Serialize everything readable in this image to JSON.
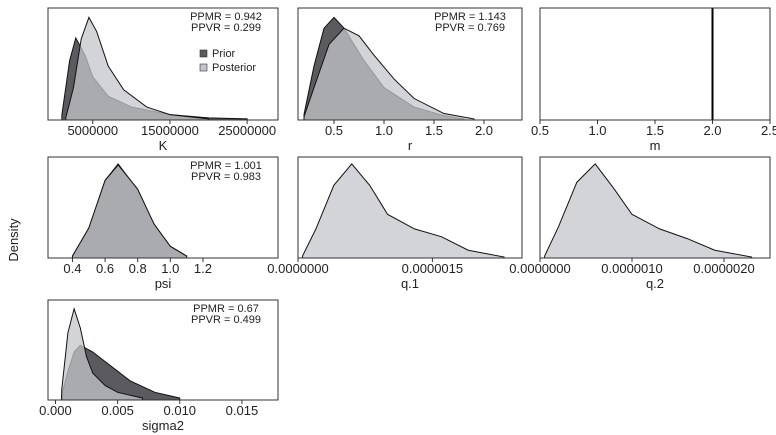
{
  "y_label": "Density",
  "chart_data": [
    {
      "type": "density",
      "x_label": "K",
      "xlim": [
        -800000,
        29000000
      ],
      "xticks": [
        5000000,
        15000000,
        25000000
      ],
      "ylim": [
        0,
        1
      ],
      "annotations": [
        "PPMR = 0.942",
        "PPVR = 0.299"
      ],
      "legend": "upper right",
      "series": [
        {
          "name": "Prior",
          "color": "#5b5b5f",
          "x": [
            1000000,
            2000000,
            2800000,
            4000000,
            5000000,
            7000000,
            10000000,
            15000000,
            20000000,
            25000000
          ],
          "values": [
            0.05,
            0.55,
            0.76,
            0.6,
            0.4,
            0.22,
            0.12,
            0.05,
            0.02,
            0.01
          ]
        },
        {
          "name": "Posterior",
          "color": "#c4c5ca",
          "x": [
            1500000,
            2500000,
            3500000,
            4500000,
            5500000,
            7000000,
            9000000,
            12000000,
            15000000,
            20000000
          ],
          "values": [
            0.02,
            0.3,
            0.75,
            0.95,
            0.82,
            0.5,
            0.28,
            0.12,
            0.05,
            0.01
          ]
        }
      ]
    },
    {
      "type": "density",
      "x_label": "r",
      "xlim": [
        0.14,
        2.38
      ],
      "xticks": [
        0.5,
        {
          "value": 1,
          "label": "1.0"
        },
        1.5,
        {
          "value": 2,
          "label": "2.0"
        }
      ],
      "ylim": [
        0,
        1
      ],
      "annotations": [
        "PPMR = 1.143",
        "PPVR = 0.769"
      ],
      "series": [
        {
          "name": "Prior",
          "color": "#5b5b5f",
          "x": [
            0.2,
            0.3,
            0.4,
            0.5,
            0.6,
            0.8,
            1.0,
            1.3,
            1.6,
            1.8
          ],
          "values": [
            0.05,
            0.5,
            0.85,
            0.95,
            0.85,
            0.55,
            0.3,
            0.12,
            0.04,
            0.01
          ]
        },
        {
          "name": "Posterior",
          "color": "#c4c5ca",
          "x": [
            0.2,
            0.3,
            0.45,
            0.6,
            0.75,
            0.9,
            1.1,
            1.3,
            1.6,
            1.9
          ],
          "values": [
            0.03,
            0.3,
            0.7,
            0.85,
            0.78,
            0.6,
            0.38,
            0.2,
            0.06,
            0.01
          ]
        }
      ]
    },
    {
      "type": "vline",
      "x_label": "m",
      "xlim": [
        0.5,
        2.5
      ],
      "xticks": [
        0.5,
        {
          "value": 1,
          "label": "1.0"
        },
        1.5,
        {
          "value": 2,
          "label": "2.0"
        },
        2.5
      ],
      "vline": 2.0,
      "color": "#000000"
    },
    {
      "type": "density",
      "x_label": "psi",
      "xlim": [
        0.25,
        1.66
      ],
      "xticks": [
        0.4,
        0.6,
        0.8,
        {
          "value": 1,
          "label": "1.0"
        },
        1.2
      ],
      "ylim": [
        0,
        1
      ],
      "annotations": [
        "PPMR = 1.001",
        "PPVR = 0.983"
      ],
      "series": [
        {
          "name": "Prior",
          "color": "#5b5b5f",
          "x": [
            0.4,
            0.5,
            0.6,
            0.68,
            0.8,
            0.9,
            1.0,
            1.1
          ],
          "values": [
            0.02,
            0.3,
            0.8,
            0.97,
            0.7,
            0.35,
            0.12,
            0.02
          ]
        },
        {
          "name": "Posterior",
          "color": "#c4c5ca",
          "x": [
            0.4,
            0.5,
            0.6,
            0.68,
            0.8,
            0.9,
            1.0,
            1.1
          ],
          "values": [
            0.02,
            0.31,
            0.8,
            0.96,
            0.71,
            0.35,
            0.12,
            0.02
          ]
        }
      ]
    },
    {
      "type": "density",
      "x_label": "q.1",
      "xlim": [
        0,
        2.5e-06
      ],
      "xticks": [
        {
          "value": 0,
          "label": "0.0000000"
        },
        {
          "value": 1.5e-06,
          "label": "0.0000015"
        }
      ],
      "ylim": [
        0,
        1
      ],
      "series": [
        {
          "name": "Posterior",
          "color": "#c4c5ca",
          "x": [
            5e-08,
            2e-07,
            4e-07,
            6e-07,
            8e-07,
            1e-06,
            1.3e-06,
            1.6e-06,
            1.9e-06,
            2.3e-06
          ],
          "values": [
            0.02,
            0.3,
            0.75,
            0.97,
            0.75,
            0.45,
            0.3,
            0.22,
            0.08,
            0.01
          ]
        }
      ]
    },
    {
      "type": "density",
      "x_label": "q.2",
      "xlim": [
        0,
        2.5e-06
      ],
      "xticks": [
        {
          "value": 0,
          "label": "0.0000000"
        },
        {
          "value": 1e-06,
          "label": "0.0000010"
        },
        {
          "value": 2e-06,
          "label": "0.0000020"
        }
      ],
      "ylim": [
        0,
        1
      ],
      "series": [
        {
          "name": "Posterior",
          "color": "#c4c5ca",
          "x": [
            5e-08,
            2e-07,
            4e-07,
            6e-07,
            8e-07,
            1e-06,
            1.3e-06,
            1.6e-06,
            1.9e-06,
            2.3e-06
          ],
          "values": [
            0.02,
            0.32,
            0.78,
            0.97,
            0.72,
            0.45,
            0.3,
            0.2,
            0.08,
            0.01
          ]
        }
      ]
    },
    {
      "type": "density",
      "x_label": "sigma2",
      "xlim": [
        -0.0006,
        0.0179
      ],
      "xticks": [
        {
          "value": 0,
          "label": "0.000"
        },
        0.005,
        {
          "value": 0.01,
          "label": "0.010"
        },
        0.015
      ],
      "ylim": [
        0,
        1
      ],
      "annotations": [
        "PPMR = 0.67",
        "PPVR = 0.499"
      ],
      "series": [
        {
          "name": "Prior",
          "color": "#5b5b5f",
          "x": [
            0.0005,
            0.001,
            0.0015,
            0.002,
            0.003,
            0.004,
            0.005,
            0.006,
            0.008,
            0.01
          ],
          "values": [
            0.05,
            0.3,
            0.5,
            0.57,
            0.5,
            0.4,
            0.3,
            0.2,
            0.08,
            0.02
          ]
        },
        {
          "name": "Posterior",
          "color": "#c4c5ca",
          "x": [
            0.0005,
            0.001,
            0.0015,
            0.002,
            0.0025,
            0.003,
            0.004,
            0.005,
            0.007
          ],
          "values": [
            0.1,
            0.7,
            0.95,
            0.75,
            0.45,
            0.28,
            0.15,
            0.08,
            0.02
          ]
        }
      ]
    }
  ]
}
